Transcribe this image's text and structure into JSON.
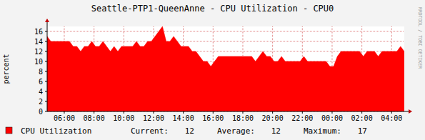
{
  "chart_data": {
    "type": "area",
    "title": "Seattle-PTP1-QueenAnne - CPU Utilization - CPU0",
    "y_label": "percent",
    "watermark": "RRDTOOL / TOBI OETIKER",
    "x": [
      4.85,
      5.1,
      5.35,
      5.6,
      5.85,
      6.1,
      6.35,
      6.6,
      6.85,
      7.1,
      7.35,
      7.6,
      7.85,
      8.1,
      8.35,
      8.6,
      8.85,
      9.1,
      9.35,
      9.6,
      9.85,
      10.1,
      10.35,
      10.6,
      10.85,
      11.1,
      11.35,
      11.6,
      11.85,
      12.1,
      12.35,
      12.6,
      12.85,
      13.1,
      13.35,
      13.6,
      13.85,
      14.1,
      14.35,
      14.6,
      14.85,
      15.1,
      15.35,
      15.6,
      15.85,
      16.1,
      16.35,
      16.6,
      16.85,
      17.1,
      17.35,
      17.6,
      17.85,
      18.1,
      18.35,
      18.6,
      18.85,
      19.1,
      19.35,
      19.6,
      19.85,
      20.1,
      20.35,
      20.6,
      20.85,
      21.1,
      21.35,
      21.6,
      21.85,
      22.1,
      22.35,
      22.6,
      22.85,
      23.1,
      23.35,
      23.6,
      23.85,
      24.1,
      24.35,
      24.6,
      24.85,
      25.1,
      25.35,
      25.6,
      25.85,
      26.1,
      26.35,
      26.6,
      26.85,
      27.1,
      27.35,
      27.6,
      27.85,
      28.1,
      28.35,
      28.6,
      28.85
    ],
    "series": [
      {
        "name": "CPU Utilization",
        "color": "#ff0000",
        "values": [
          15,
          14,
          14,
          14,
          14,
          14,
          14,
          13,
          13,
          12,
          13,
          13,
          14,
          13,
          13,
          14,
          13,
          12,
          13,
          12,
          13,
          13,
          13,
          13,
          14,
          13,
          13,
          14,
          14,
          15,
          16,
          17,
          14,
          14,
          15,
          14,
          13,
          13,
          13,
          12,
          12,
          11,
          10,
          10,
          9,
          10,
          11,
          11,
          11,
          11,
          11,
          11,
          11,
          11,
          11,
          11,
          10,
          11,
          12,
          11,
          11,
          10,
          10,
          11,
          10,
          10,
          10,
          10,
          10,
          11,
          10,
          10,
          10,
          10,
          10,
          10,
          9,
          9,
          11,
          12,
          12,
          12,
          12,
          12,
          12,
          11,
          12,
          12,
          12,
          11,
          12,
          12,
          12,
          12,
          12,
          13,
          12
        ]
      }
    ],
    "xlim": [
      4.85,
      28.85
    ],
    "xticks": [
      {
        "value": 6,
        "label": "06:00"
      },
      {
        "value": 8,
        "label": "08:00"
      },
      {
        "value": 10,
        "label": "10:00"
      },
      {
        "value": 12,
        "label": "12:00"
      },
      {
        "value": 14,
        "label": "14:00"
      },
      {
        "value": 16,
        "label": "16:00"
      },
      {
        "value": 18,
        "label": "18:00"
      },
      {
        "value": 20,
        "label": "20:00"
      },
      {
        "value": 22,
        "label": "22:00"
      },
      {
        "value": 24,
        "label": "00:00"
      },
      {
        "value": 26,
        "label": "02:00"
      },
      {
        "value": 28,
        "label": "04:00"
      }
    ],
    "ylim": [
      0,
      17
    ],
    "yticks": [
      0,
      2,
      4,
      6,
      8,
      10,
      12,
      14,
      16
    ],
    "grid": true,
    "legend": "bottom",
    "legend_stats": [
      {
        "label": "Current:",
        "value": 12
      },
      {
        "label": "Average:",
        "value": 12
      },
      {
        "label": "Maximum:",
        "value": 17
      }
    ]
  }
}
